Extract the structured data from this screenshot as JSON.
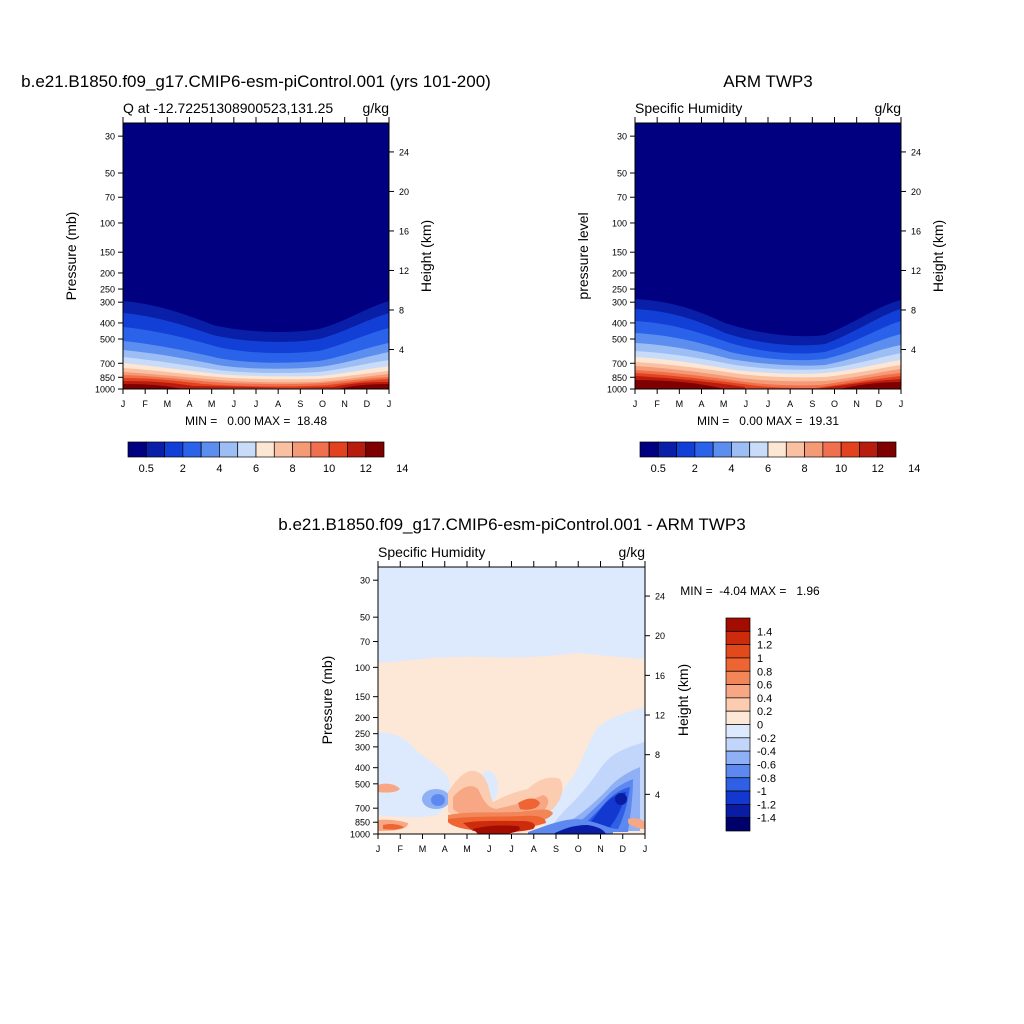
{
  "colors": {
    "levels12": [
      "#000080",
      "#0a1fa8",
      "#1240d6",
      "#2a62ea",
      "#5c8ef0",
      "#9dbdf5",
      "#c8dbf8",
      "#fde6d4",
      "#f9c0a2",
      "#f49a77",
      "#f0704d",
      "#e3421f",
      "#b71c0e",
      "#7f0000"
    ],
    "diff": [
      "#00006b",
      "#0a1ca3",
      "#1238d0",
      "#2f5fe4",
      "#5d88ef",
      "#8fb0f5",
      "#c1d6fa",
      "#dde9fc",
      "#fde8d8",
      "#fbccb0",
      "#f7a784",
      "#f28658",
      "#ee6432",
      "#e24a1b",
      "#cd2c0c",
      "#a30c00"
    ]
  },
  "months": [
    "J",
    "F",
    "M",
    "A",
    "M",
    "J",
    "J",
    "A",
    "S",
    "O",
    "N",
    "D",
    "J"
  ],
  "pressure_ticks": [
    "30",
    "50",
    "70",
    "100",
    "150",
    "200",
    "250",
    "300",
    "400",
    "500",
    "700",
    "850",
    "1000"
  ],
  "height_ticks": [
    "24",
    "20",
    "16",
    "12",
    "8",
    "4"
  ],
  "panel1": {
    "top_title": "b.e21.B1850.f09_g17.CMIP6-esm-piControl.001 (yrs 101-200)",
    "left_subtitle": "Q at -12.72251308900523,131.25",
    "right_subtitle": "g/kg",
    "ylabel": "Pressure (mb)",
    "y2label": "Height (km)",
    "stats": "MIN =   0.00 MAX =  18.48"
  },
  "panel2": {
    "top_title": "ARM TWP3",
    "left_subtitle": "Specific Humidity",
    "right_subtitle": "g/kg",
    "ylabel": "pressure level",
    "y2label": "Height (km)",
    "stats": "MIN =   0.00 MAX =  19.31"
  },
  "panel3": {
    "top_title": "b.e21.B1850.f09_g17.CMIP6-esm-piControl.001 - ARM TWP3",
    "left_subtitle": "Specific Humidity",
    "right_subtitle": "g/kg",
    "ylabel": "Pressure (mb)",
    "y2label": "Height (km)",
    "stats": "MIN =  -4.04 MAX =   1.96"
  },
  "colorbar12_labels": [
    "0.5",
    "2",
    "4",
    "6",
    "8",
    "10",
    "12",
    "14"
  ],
  "colorbar_diff_labels": [
    "1.4",
    "1.2",
    "1",
    "0.8",
    "0.6",
    "0.4",
    "0.2",
    "0",
    "-0.2",
    "-0.4",
    "-0.6",
    "-0.8",
    "-1",
    "-1.2",
    "-1.4"
  ],
  "chart_data": [
    {
      "type": "heatmap",
      "title": "Q at -12.72251308900523,131.25",
      "xlabel": "",
      "ylabel": "Pressure (mb)",
      "y2label": "Height (km)",
      "units": "g/kg",
      "x": [
        "J",
        "F",
        "M",
        "A",
        "M",
        "J",
        "J",
        "A",
        "S",
        "O",
        "N",
        "D",
        "J"
      ],
      "pressure_levels": [
        30,
        50,
        70,
        100,
        150,
        200,
        250,
        300,
        400,
        500,
        700,
        850,
        1000
      ],
      "ylim": [
        1000,
        25
      ],
      "contour_levels": [
        0.5,
        1,
        2,
        3,
        4,
        5,
        6,
        7,
        8,
        9,
        10,
        11,
        12,
        13,
        14
      ],
      "min": 0.0,
      "max": 18.48
    },
    {
      "type": "heatmap",
      "title": "Specific Humidity",
      "ylabel": "pressure level",
      "y2label": "Height (km)",
      "units": "g/kg",
      "x": [
        "J",
        "F",
        "M",
        "A",
        "M",
        "J",
        "J",
        "A",
        "S",
        "O",
        "N",
        "D",
        "J"
      ],
      "pressure_levels": [
        30,
        50,
        70,
        100,
        150,
        200,
        250,
        300,
        400,
        500,
        700,
        850,
        1000
      ],
      "ylim": [
        1000,
        25
      ],
      "contour_levels": [
        0.5,
        1,
        2,
        3,
        4,
        5,
        6,
        7,
        8,
        9,
        10,
        11,
        12,
        13,
        14
      ],
      "min": 0.0,
      "max": 19.31
    },
    {
      "type": "heatmap",
      "title": "Specific Humidity",
      "ylabel": "Pressure (mb)",
      "y2label": "Height (km)",
      "units": "g/kg",
      "x": [
        "J",
        "F",
        "M",
        "A",
        "M",
        "J",
        "J",
        "A",
        "S",
        "O",
        "N",
        "D",
        "J"
      ],
      "pressure_levels": [
        30,
        50,
        70,
        100,
        150,
        200,
        250,
        300,
        400,
        500,
        700,
        850,
        1000
      ],
      "ylim": [
        1000,
        25
      ],
      "contour_levels": [
        -1.4,
        -1.2,
        -1,
        -0.8,
        -0.6,
        -0.4,
        -0.2,
        0,
        0.2,
        0.4,
        0.6,
        0.8,
        1,
        1.2,
        1.4
      ],
      "min": -4.04,
      "max": 1.96
    }
  ]
}
